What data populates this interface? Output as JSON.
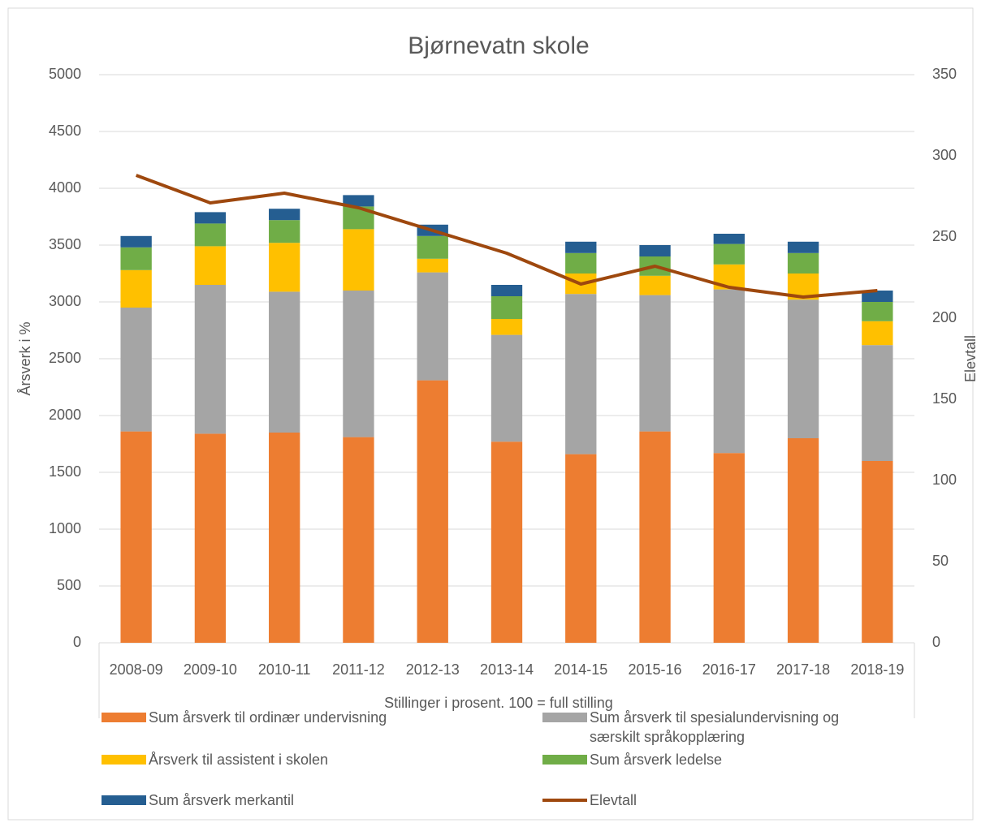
{
  "chart_data": {
    "type": "bar",
    "stacked": true,
    "title": "Bjørnevatn skole",
    "x_label": "Stillinger i prosent. 100 = full stilling",
    "y_label": "Årsverk i %",
    "y2_label": "Elevtall",
    "categories": [
      "2008-09",
      "2009-10",
      "2010-11",
      "2011-12",
      "2012-13",
      "2013-14",
      "2014-15",
      "2015-16",
      "2016-17",
      "2017-18",
      "2018-19"
    ],
    "series": [
      {
        "name": "Sum årsverk til ordinær undervisning",
        "color": "#ed7d31",
        "values": [
          1860,
          1840,
          1850,
          1810,
          2310,
          1770,
          1660,
          1860,
          1670,
          1800,
          1600
        ]
      },
      {
        "name": "Sum årsverk til spesialundervisning og særskilt språkopplæring",
        "color": "#a5a5a5",
        "values": [
          1090,
          1310,
          1240,
          1290,
          950,
          940,
          1410,
          1200,
          1440,
          1220,
          1020
        ]
      },
      {
        "name": "Årsverk til assistent i skolen",
        "color": "#ffc000",
        "values": [
          330,
          340,
          430,
          540,
          120,
          140,
          180,
          170,
          220,
          230,
          210
        ]
      },
      {
        "name": "Sum årsverk ledelse",
        "color": "#70ad47",
        "values": [
          200,
          200,
          200,
          200,
          200,
          200,
          180,
          170,
          180,
          180,
          170
        ]
      },
      {
        "name": "Sum årsverk merkantil",
        "color": "#255e91",
        "values": [
          100,
          100,
          100,
          100,
          100,
          100,
          100,
          100,
          90,
          100,
          100
        ]
      },
      {
        "name": "Elevtall",
        "color": "#9e480e",
        "type": "line",
        "axis": "y2",
        "values": [
          288,
          271,
          277,
          268,
          254,
          240,
          221,
          232,
          219,
          213,
          217
        ]
      }
    ],
    "ylim": [
      0,
      5000
    ],
    "yticks": [
      0,
      500,
      1000,
      1500,
      2000,
      2500,
      3000,
      3500,
      4000,
      4500,
      5000
    ],
    "y2lim": [
      0,
      350
    ],
    "y2ticks": [
      0,
      50,
      100,
      150,
      200,
      250,
      300,
      350
    ],
    "grid": true,
    "legend": "bottom"
  }
}
